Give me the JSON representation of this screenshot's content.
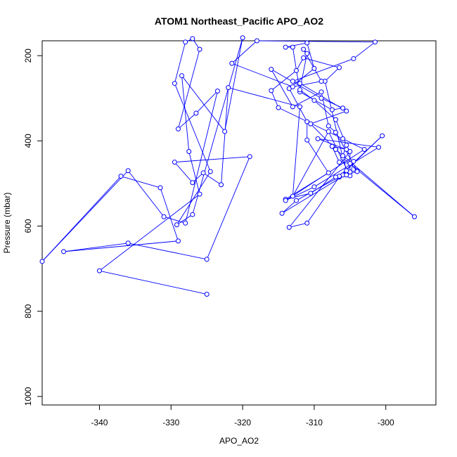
{
  "chart_data": {
    "type": "line",
    "title": "ATOM1 Northeast_Pacific APO_AO2",
    "xlabel": "APO_AO2",
    "ylabel": "Pressure (mbar)",
    "xlim": [
      -348,
      -293
    ],
    "ylim": [
      1020,
      165
    ],
    "y_reversed": true,
    "x_ticks": [
      -340,
      -330,
      -320,
      -310,
      -300
    ],
    "y_ticks": [
      200,
      400,
      600,
      800,
      1000
    ],
    "grid": false,
    "legend": "none",
    "color": "#0000ff",
    "marker": "open-circle",
    "series": [
      {
        "values": [
          [
            -325.0,
            760
          ],
          [
            -340.0,
            705
          ],
          [
            -326.0,
            525
          ],
          [
            -327.5,
            425
          ],
          [
            -328.5,
            247
          ],
          [
            -322.5,
            378
          ],
          [
            -320.0,
            158
          ],
          [
            -327.0,
            573
          ],
          [
            -329.2,
            597
          ],
          [
            -324.5,
            472
          ],
          [
            -329.5,
            265
          ],
          [
            -328.0,
            168
          ],
          [
            -327.0,
            160
          ],
          [
            -326.0,
            185
          ],
          [
            -329.0,
            372
          ],
          [
            -326.5,
            335
          ],
          [
            -323.5,
            283
          ],
          [
            -328.0,
            593
          ],
          [
            -331.0,
            578
          ],
          [
            -336.0,
            470
          ],
          [
            -348.0,
            683
          ],
          [
            -337.0,
            483
          ],
          [
            -331.5,
            510
          ],
          [
            -329.0,
            635
          ],
          [
            -345.0,
            660
          ],
          [
            -336.0,
            640
          ],
          [
            -325.0,
            678
          ],
          [
            -319.0,
            437
          ],
          [
            -329.5,
            450
          ],
          [
            -327.0,
            498
          ],
          [
            -325.5,
            475
          ],
          [
            -323.0,
            503
          ],
          [
            -322.0,
            275
          ],
          [
            -312.0,
            320
          ],
          [
            -313.0,
            530
          ],
          [
            -308.0,
            378
          ],
          [
            -305.0,
            482
          ],
          [
            -304.5,
            448
          ],
          [
            -306.0,
            480
          ],
          [
            -312.5,
            540
          ],
          [
            -314.5,
            570
          ],
          [
            -305.0,
            473
          ],
          [
            -305.0,
            425
          ],
          [
            -313.5,
            603
          ],
          [
            -311.0,
            593
          ],
          [
            -306.5,
            485
          ],
          [
            -300.5,
            388
          ],
          [
            -306.5,
            483
          ],
          [
            -307.0,
            485
          ],
          [
            -310.5,
            523
          ],
          [
            -314.0,
            537
          ],
          [
            -308.0,
            475
          ],
          [
            -311.0,
            398
          ],
          [
            -311.0,
            355
          ],
          [
            -313.5,
            277
          ],
          [
            -310.0,
            230
          ],
          [
            -311.0,
            170
          ],
          [
            -314.0,
            180
          ],
          [
            -313.0,
            180
          ],
          [
            -312.0,
            285
          ],
          [
            -307.5,
            327
          ],
          [
            -306.0,
            323
          ],
          [
            -309.0,
            300
          ],
          [
            -316.0,
            232
          ],
          [
            -313.0,
            320
          ],
          [
            -309.0,
            285
          ],
          [
            -308.0,
            365
          ],
          [
            -307.0,
            380
          ],
          [
            -304.0,
            470
          ],
          [
            -305.0,
            453
          ],
          [
            -306.5,
            450
          ],
          [
            -307.5,
            413
          ],
          [
            -305.5,
            420
          ],
          [
            -309.5,
            395
          ],
          [
            -301.0,
            415
          ],
          [
            -310.0,
            508
          ],
          [
            -314.0,
            540
          ],
          [
            -303.0,
            420
          ],
          [
            -306.0,
            395
          ],
          [
            -315.0,
            322
          ],
          [
            -316.0,
            282
          ],
          [
            -312.5,
            235
          ],
          [
            -311.5,
            205
          ],
          [
            -306.5,
            228
          ],
          [
            -308.5,
            260
          ],
          [
            -306.0,
            440
          ],
          [
            -296.0,
            578
          ],
          [
            -307.0,
            420
          ],
          [
            -310.5,
            360
          ],
          [
            -305.5,
            330
          ],
          [
            -312.0,
            265
          ],
          [
            -313.0,
            260
          ],
          [
            -304.5,
            207
          ],
          [
            -301.5,
            168
          ],
          [
            -318.0,
            165
          ],
          [
            -321.5,
            218
          ],
          [
            -313.0,
            273
          ],
          [
            -309.0,
            260
          ],
          [
            -311.5,
            185
          ],
          [
            -311.0,
            195
          ],
          [
            -312.0,
            280
          ],
          [
            -310.0,
            305
          ],
          [
            -307.0,
            350
          ],
          [
            -305.5,
            410
          ],
          [
            -306.0,
            435
          ],
          [
            -305.5,
            470
          ],
          [
            -304.0,
            472
          ],
          [
            -305.5,
            480
          ]
        ]
      }
    ]
  }
}
